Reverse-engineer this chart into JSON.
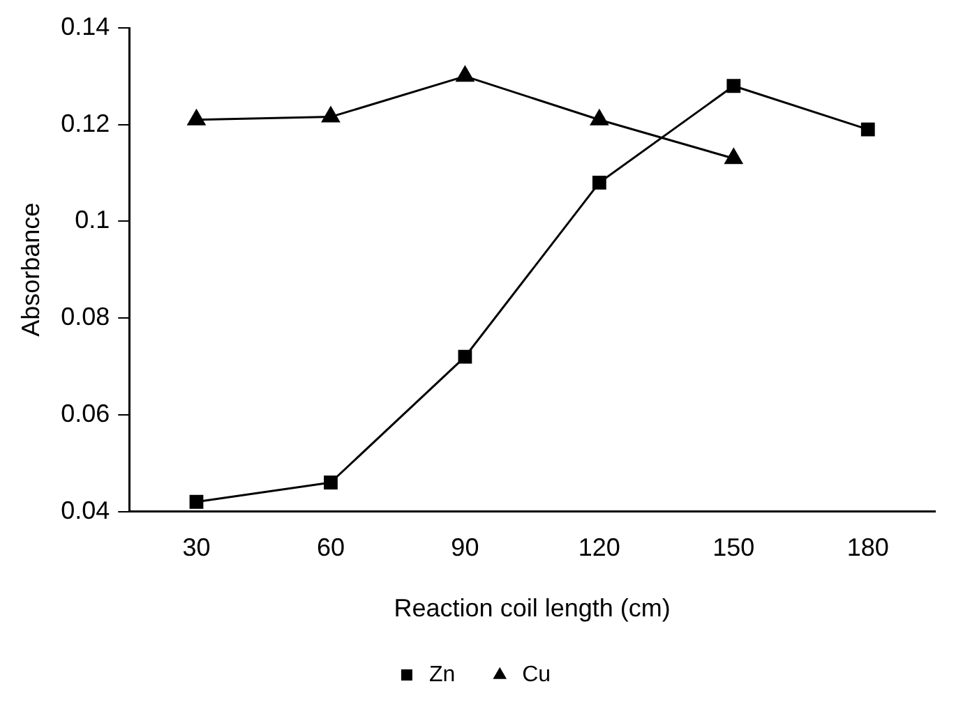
{
  "chart_data": {
    "type": "line",
    "xlabel": "Reaction coil length (cm)",
    "ylabel": "Absorbance",
    "categories": [
      "30",
      "60",
      "90",
      "120",
      "150",
      "180"
    ],
    "series": [
      {
        "name": "Zn",
        "color": "#000000",
        "marker": "square",
        "values": [
          0.042,
          0.046,
          0.072,
          0.108,
          0.128,
          0.119
        ]
      },
      {
        "name": "Cu",
        "color": "#000000",
        "marker": "triangle",
        "values": [
          0.121,
          0.1216,
          0.13,
          0.121,
          0.113,
          null
        ]
      }
    ],
    "ylim": [
      0.04,
      0.14
    ],
    "yticks": [
      0.04,
      0.06,
      0.08,
      0.1,
      0.12,
      0.14
    ],
    "grid": false,
    "legend": "bottom",
    "line_style": "solid"
  }
}
